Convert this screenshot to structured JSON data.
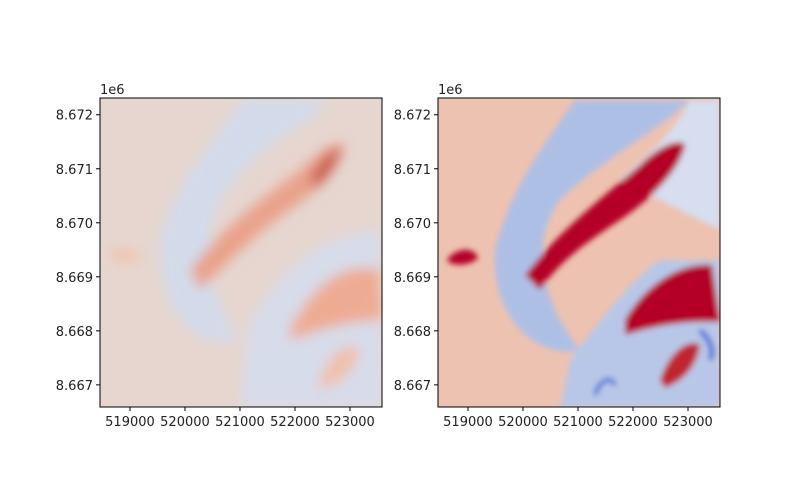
{
  "chart_data": [
    {
      "type": "image",
      "offset_text": "1e6",
      "xlim": [
        518455,
        523582
      ],
      "ylim": [
        8.66659,
        8.67231
      ],
      "xticks": [
        519000,
        520000,
        521000,
        522000,
        523000
      ],
      "yticks": [
        {
          "value": 8.667,
          "label": "8.667"
        },
        {
          "value": 8.668,
          "label": "8.668"
        },
        {
          "value": 8.669,
          "label": "8.669"
        },
        {
          "value": 8.67,
          "label": "8.670"
        },
        {
          "value": 8.671,
          "label": "8.671"
        },
        {
          "value": 8.672,
          "label": "8.672"
        }
      ]
    },
    {
      "type": "image",
      "offset_text": "1e6",
      "xlim": [
        518455,
        523582
      ],
      "ylim": [
        8.66659,
        8.67231
      ],
      "xticks": [
        519000,
        520000,
        521000,
        522000,
        523000
      ],
      "yticks": [
        {
          "value": 8.667,
          "label": "8.667"
        },
        {
          "value": 8.668,
          "label": "8.668"
        },
        {
          "value": 8.669,
          "label": "8.669"
        },
        {
          "value": 8.67,
          "label": "8.670"
        },
        {
          "value": 8.671,
          "label": "8.671"
        },
        {
          "value": 8.672,
          "label": "8.672"
        }
      ]
    }
  ]
}
